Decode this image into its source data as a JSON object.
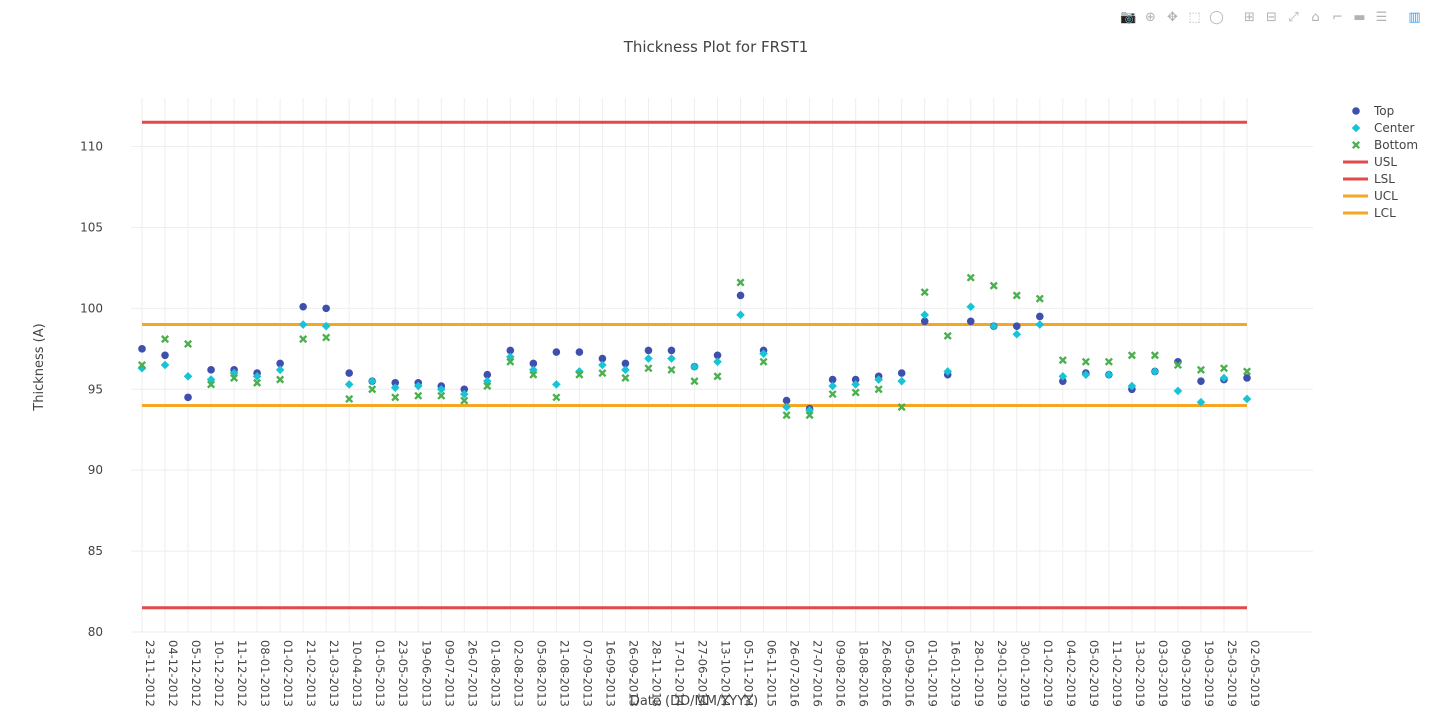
{
  "modebar": {
    "icons": [
      "camera-icon",
      "zoom-icon",
      "pan-icon",
      "box-select-icon",
      "lasso-icon",
      "zoom-in-icon",
      "zoom-out-icon",
      "autoscale-icon",
      "reset-axes-icon",
      "spike-lines-icon",
      "hover-closest-icon",
      "hover-compare-icon",
      "plotly-logo-icon"
    ],
    "glyphs": [
      "📷",
      "⊕",
      "✥",
      "⬚",
      "◯",
      "⊞",
      "⊟",
      "⤢",
      "⌂",
      "⌐",
      "▬",
      "☰",
      "▥"
    ]
  },
  "colors": {
    "top": "#3f4fad",
    "center": "#18c3d6",
    "bottom": "#4caf50",
    "spec_limit": "#e34949",
    "control_limit": "#f5a623",
    "grid": "#eeeeee",
    "title": "#444444"
  },
  "chart_data": {
    "type": "scatter",
    "title": "Thickness Plot for FRST1",
    "xlabel": "Date (DD/MM/YYYY)",
    "ylabel": "Thickness (A)",
    "ylim": [
      80,
      113
    ],
    "yticks": [
      80,
      85,
      90,
      95,
      100,
      105,
      110
    ],
    "grid": true,
    "legend_position": "top-right",
    "categories": [
      "23-11-2012",
      "04-12-2012",
      "05-12-2012",
      "10-12-2012",
      "11-12-2012",
      "08-01-2013",
      "01-02-2013",
      "21-02-2013",
      "21-03-2013",
      "10-04-2013",
      "01-05-2013",
      "23-05-2013",
      "19-06-2013",
      "09-07-2013",
      "26-07-2013",
      "01-08-2013",
      "02-08-2013",
      "05-08-2013",
      "21-08-2013",
      "07-09-2013",
      "16-09-2013",
      "26-09-2013",
      "28-11-2013",
      "17-01-2014",
      "27-06-2014",
      "13-10-2014",
      "05-11-2014",
      "06-11-2015",
      "26-07-2016",
      "27-07-2016",
      "09-08-2016",
      "18-08-2016",
      "26-08-2016",
      "05-09-2016",
      "01-01-2019",
      "16-01-2019",
      "28-01-2019",
      "29-01-2019",
      "30-01-2019",
      "01-02-2019",
      "04-02-2019",
      "05-02-2019",
      "11-02-2019",
      "13-02-2019",
      "03-03-2019",
      "09-03-2019",
      "19-03-2019",
      "25-03-2019",
      "02-05-2019"
    ],
    "series": [
      {
        "name": "Top",
        "marker": "circle",
        "values": [
          97.5,
          97.1,
          94.5,
          96.2,
          96.2,
          96.0,
          96.6,
          100.1,
          100.0,
          96.0,
          95.5,
          95.4,
          95.4,
          95.2,
          95.0,
          95.9,
          97.4,
          96.6,
          97.3,
          97.3,
          96.9,
          96.6,
          97.4,
          97.4,
          96.4,
          97.1,
          100.8,
          97.4,
          94.3,
          93.8,
          95.6,
          95.6,
          95.8,
          96.0,
          99.2,
          95.9,
          99.2,
          98.9,
          98.9,
          99.5,
          95.5,
          96.0,
          95.9,
          95.0,
          96.1,
          96.7,
          95.5,
          95.6,
          95.7
        ]
      },
      {
        "name": "Center",
        "marker": "diamond",
        "values": [
          96.3,
          96.5,
          95.8,
          95.6,
          96.0,
          95.8,
          96.2,
          99.0,
          98.9,
          95.3,
          95.5,
          95.1,
          95.2,
          95.0,
          94.7,
          95.5,
          97.0,
          96.2,
          95.3,
          96.1,
          96.5,
          96.2,
          96.9,
          96.9,
          96.4,
          96.7,
          99.6,
          97.2,
          93.9,
          93.7,
          95.2,
          95.3,
          95.6,
          95.5,
          99.6,
          96.1,
          100.1,
          98.9,
          98.4,
          99.0,
          95.8,
          95.9,
          95.9,
          95.2,
          96.1,
          94.9,
          94.2,
          95.7,
          94.4
        ]
      },
      {
        "name": "Bottom",
        "marker": "x",
        "values": [
          96.5,
          98.1,
          97.8,
          95.3,
          95.7,
          95.4,
          95.6,
          98.1,
          98.2,
          94.4,
          95.0,
          94.5,
          94.6,
          94.6,
          94.3,
          95.2,
          96.7,
          95.9,
          94.5,
          95.9,
          96.0,
          95.7,
          96.3,
          96.2,
          95.5,
          95.8,
          101.6,
          96.7,
          93.4,
          93.4,
          94.7,
          94.8,
          95.0,
          93.9,
          101.0,
          98.3,
          101.9,
          101.4,
          100.8,
          100.6,
          96.8,
          96.7,
          96.7,
          97.1,
          97.1,
          96.5,
          96.2,
          96.3,
          96.1
        ]
      }
    ],
    "lines": [
      {
        "name": "USL",
        "value": 111.5,
        "color": "#e34949"
      },
      {
        "name": "LSL",
        "value": 81.5,
        "color": "#e34949"
      },
      {
        "name": "UCL",
        "value": 99.0,
        "color": "#f5a623"
      },
      {
        "name": "LCL",
        "value": 94.0,
        "color": "#f5a623"
      }
    ]
  }
}
